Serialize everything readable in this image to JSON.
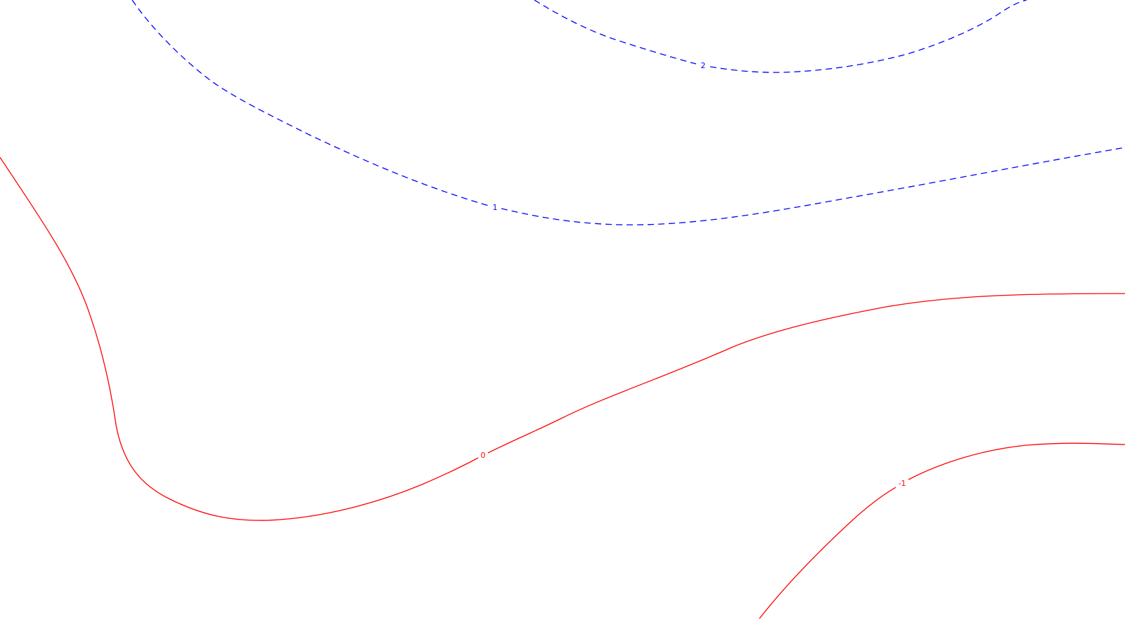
{
  "contours": [
    {
      "id": "contour-2",
      "level": 2,
      "label": "2",
      "style": "dashed",
      "color": "#0000ff"
    },
    {
      "id": "contour-1",
      "level": 1,
      "label": "1",
      "style": "dashed",
      "color": "#0000ff"
    },
    {
      "id": "contour-0",
      "level": 0,
      "label": "0",
      "style": "solid",
      "color": "#ff0000"
    },
    {
      "id": "contour-neg1",
      "level": -1,
      "label": "-1",
      "style": "solid",
      "color": "#ff0000"
    }
  ]
}
